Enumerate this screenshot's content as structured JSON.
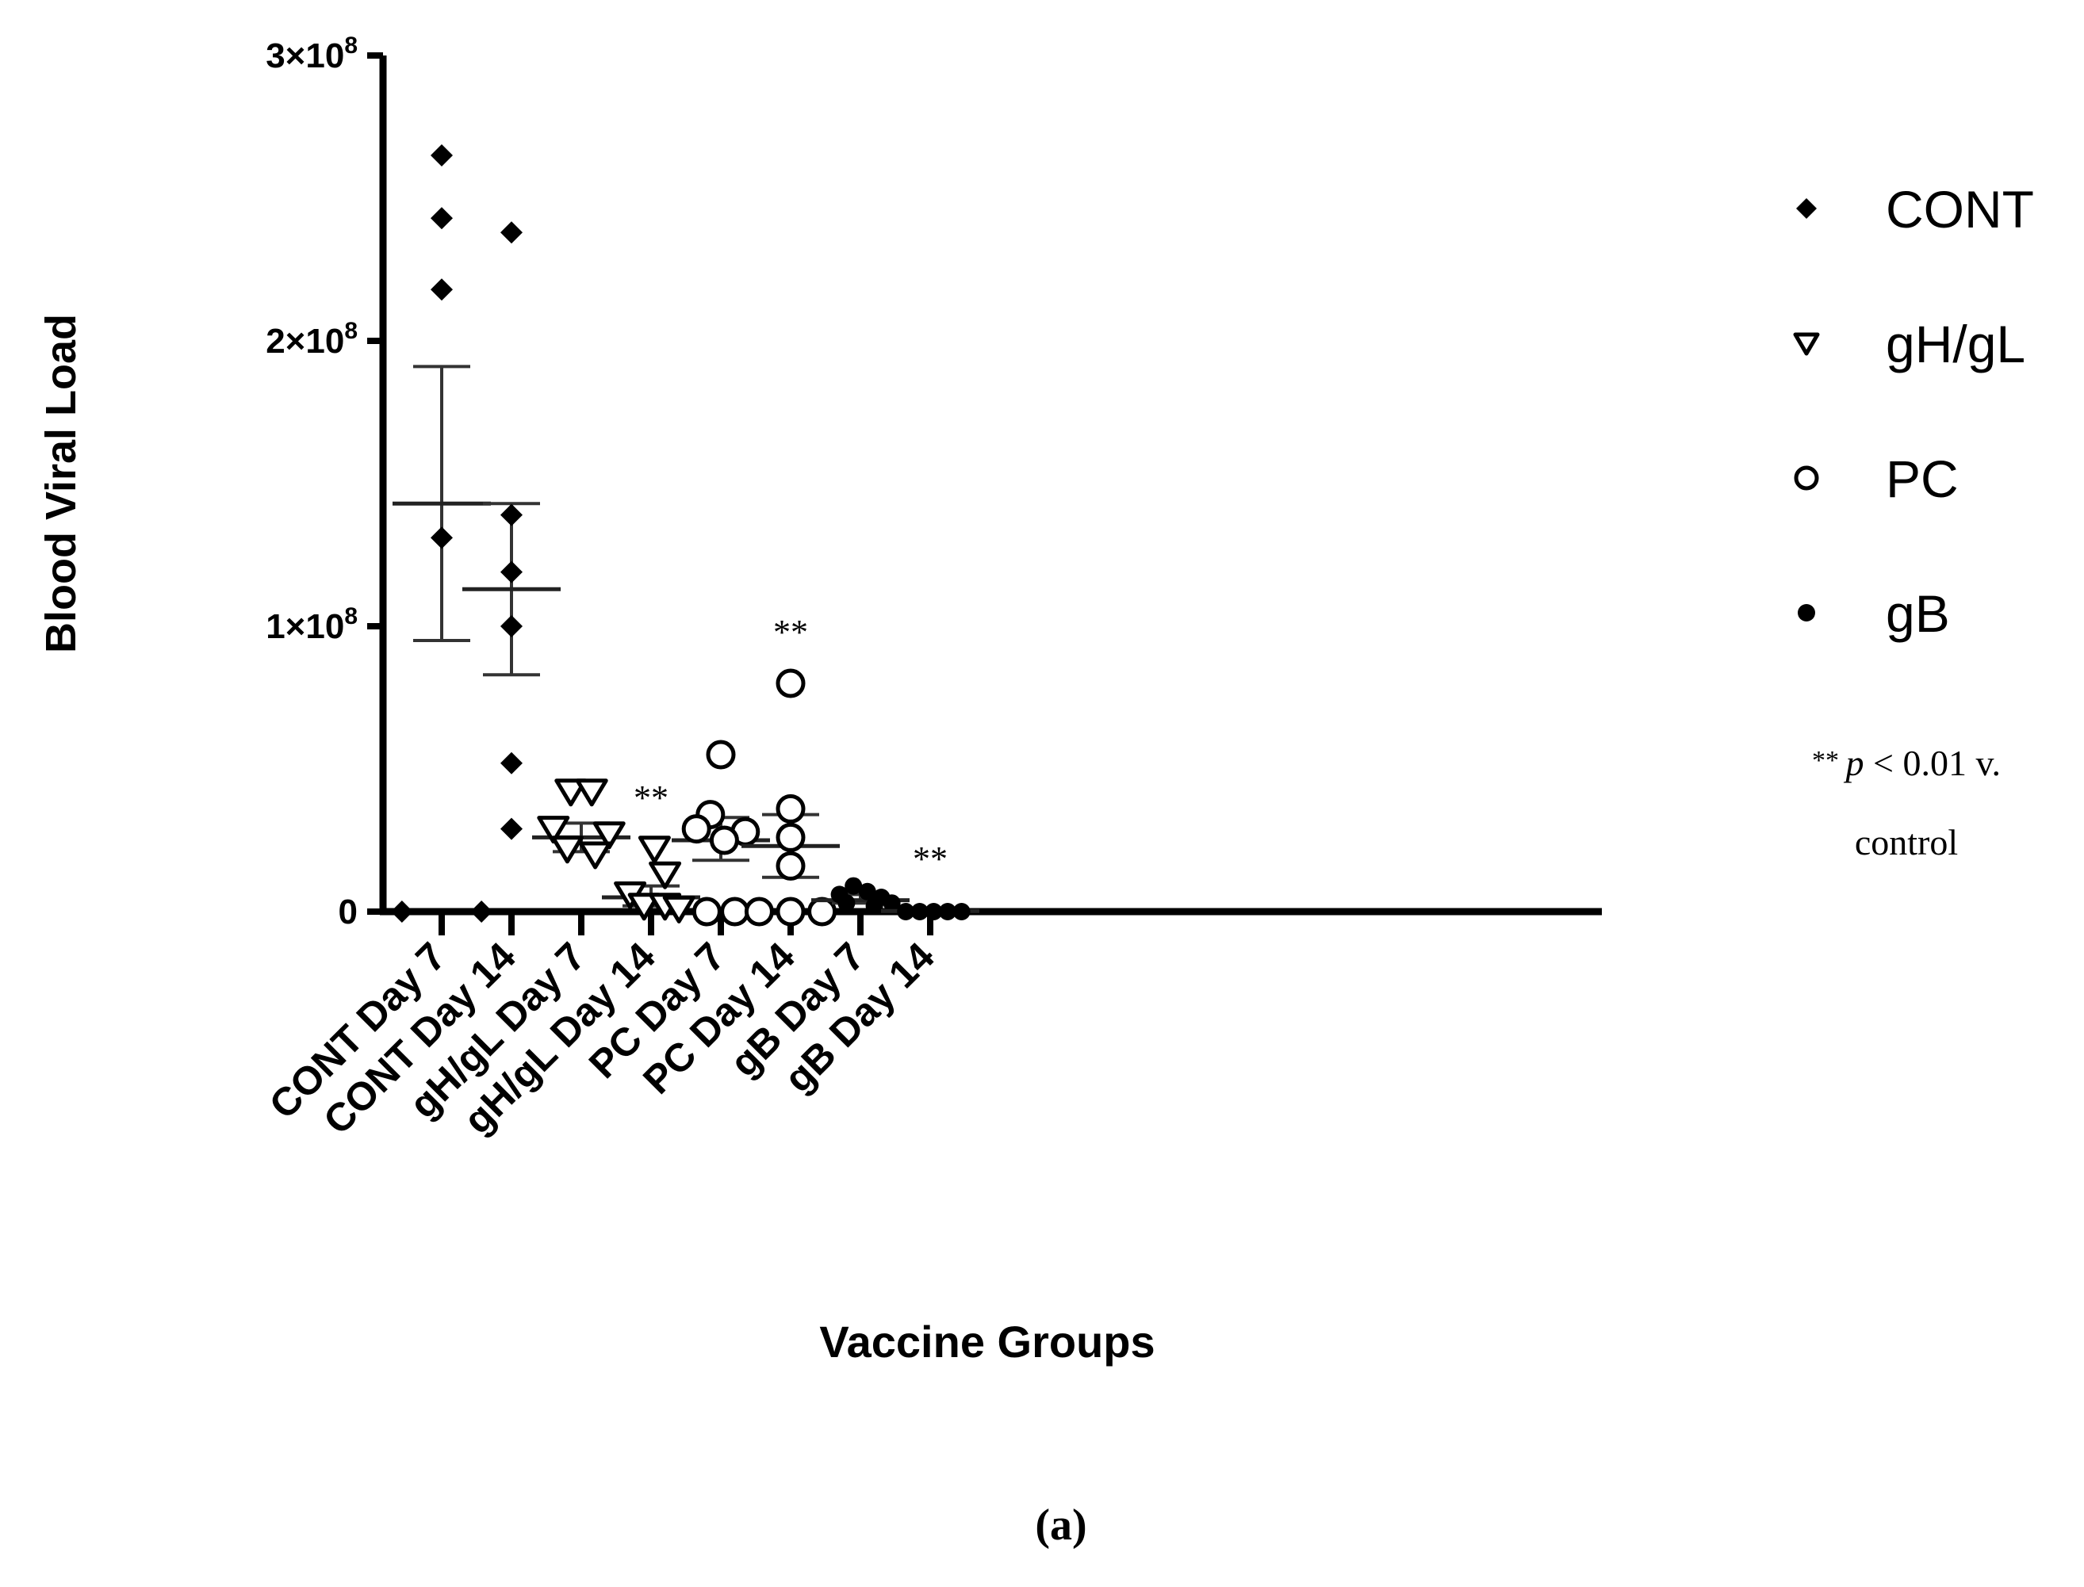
{
  "chart_data": {
    "type": "scatter",
    "subtype": "dot-plot-with-mean-and-sem",
    "panel_label": "(a)",
    "xlabel": "Vaccine Groups",
    "ylabel": "Blood Viral Load",
    "ylim": [
      0,
      300000000
    ],
    "y_ticks": [
      {
        "value": 0,
        "label": "0",
        "sup": ""
      },
      {
        "value": 100000000,
        "label": "1×10",
        "sup": "8"
      },
      {
        "value": 200000000,
        "label": "2×10",
        "sup": "8"
      },
      {
        "value": 300000000,
        "label": "3×10",
        "sup": "8"
      }
    ],
    "categories": [
      "CONT Day 7",
      "CONT Day 14",
      "gH/gL Day 7",
      "gH/gL Day 14",
      "PC Day 7",
      "PC Day 14",
      "gB Day 7",
      "gB Day 14"
    ],
    "groups": [
      {
        "category": "CONT Day 7",
        "series": "CONT",
        "mean": 143000000,
        "sem_low": 95000000,
        "sem_high": 191000000,
        "significance": "",
        "points": [
          {
            "dx": 0,
            "y": 265000000
          },
          {
            "dx": 0,
            "y": 243000000
          },
          {
            "dx": 0,
            "y": 218000000
          },
          {
            "dx": 0,
            "y": 131000000
          },
          {
            "dx": -0.57,
            "y": 0
          },
          {
            "dx": 0.57,
            "y": 0
          }
        ]
      },
      {
        "category": "CONT Day 14",
        "series": "CONT",
        "mean": 113000000,
        "sem_low": 83000000,
        "sem_high": 143000000,
        "significance": "",
        "points": [
          {
            "dx": 0,
            "y": 238000000
          },
          {
            "dx": 0,
            "y": 139000000
          },
          {
            "dx": 0,
            "y": 119000000
          },
          {
            "dx": 0,
            "y": 100000000
          },
          {
            "dx": 0,
            "y": 52000000
          },
          {
            "dx": 0,
            "y": 29000000
          }
        ]
      },
      {
        "category": "gH/gL Day 7",
        "series": "gH/gL",
        "mean": 26000000,
        "sem_low": 21000000,
        "sem_high": 31000000,
        "significance": "",
        "points": [
          {
            "dx": -0.15,
            "y": 42000000
          },
          {
            "dx": 0.15,
            "y": 42000000
          },
          {
            "dx": -0.4,
            "y": 29000000
          },
          {
            "dx": 0.4,
            "y": 27000000
          },
          {
            "dx": -0.2,
            "y": 22000000
          },
          {
            "dx": 0.2,
            "y": 20000000
          }
        ]
      },
      {
        "category": "gH/gL Day 14",
        "series": "gH/gL",
        "mean": 5000000,
        "sem_low": 2000000,
        "sem_high": 9000000,
        "significance": "**",
        "points": [
          {
            "dx": 0.05,
            "y": 22000000
          },
          {
            "dx": 0.2,
            "y": 13000000
          },
          {
            "dx": -0.3,
            "y": 6000000
          },
          {
            "dx": -0.1,
            "y": 2000000
          },
          {
            "dx": 0.2,
            "y": 2000000
          },
          {
            "dx": 0.4,
            "y": 1000000
          }
        ]
      },
      {
        "category": "PC Day 7",
        "series": "PC",
        "mean": 25000000,
        "sem_low": 18000000,
        "sem_high": 33000000,
        "significance": "",
        "points": [
          {
            "dx": 0,
            "y": 55000000
          },
          {
            "dx": -0.15,
            "y": 34000000
          },
          {
            "dx": -0.35,
            "y": 29000000
          },
          {
            "dx": 0.35,
            "y": 28000000
          },
          {
            "dx": 0.05,
            "y": 25000000
          },
          {
            "dx": -0.2,
            "y": 0
          },
          {
            "dx": 0.2,
            "y": 0
          }
        ]
      },
      {
        "category": "PC Day 14",
        "series": "PC",
        "mean": 23000000,
        "sem_low": 12000000,
        "sem_high": 34000000,
        "significance": "**",
        "points": [
          {
            "dx": 0,
            "y": 80000000
          },
          {
            "dx": 0,
            "y": 36000000
          },
          {
            "dx": 0,
            "y": 26000000
          },
          {
            "dx": 0,
            "y": 16000000
          },
          {
            "dx": -0.45,
            "y": 0
          },
          {
            "dx": 0,
            "y": 0
          },
          {
            "dx": 0.45,
            "y": 0
          }
        ]
      },
      {
        "category": "gB Day 7",
        "series": "gB",
        "mean": 4000000,
        "sem_low": 3000000,
        "sem_high": 6000000,
        "significance": "",
        "points": [
          {
            "dx": -0.3,
            "y": 6000000
          },
          {
            "dx": -0.1,
            "y": 9000000
          },
          {
            "dx": 0.1,
            "y": 7000000
          },
          {
            "dx": 0.3,
            "y": 5000000
          },
          {
            "dx": -0.2,
            "y": 3000000
          },
          {
            "dx": 0.2,
            "y": 2000000
          },
          {
            "dx": 0.45,
            "y": 3000000
          }
        ]
      },
      {
        "category": "gB Day 14",
        "series": "gB",
        "mean": 200000,
        "sem_low": 0,
        "sem_high": 500000,
        "significance": "**",
        "points": [
          {
            "dx": -0.35,
            "y": 0
          },
          {
            "dx": -0.15,
            "y": 0
          },
          {
            "dx": 0.05,
            "y": 0
          },
          {
            "dx": 0.25,
            "y": 0
          },
          {
            "dx": 0.45,
            "y": 0
          }
        ]
      }
    ],
    "legend": {
      "position": "right",
      "entries": [
        {
          "label": "CONT",
          "marker": "diamond-filled"
        },
        {
          "label": "gH/gL",
          "marker": "triangle-down-open"
        },
        {
          "label": "PC",
          "marker": "circle-open"
        },
        {
          "label": "gB",
          "marker": "circle-filled"
        }
      ],
      "note_line1_prefix": "** ",
      "note_line1_p": "p",
      "note_line1_rest": " < 0.01 v.",
      "note_line2": "control"
    }
  }
}
